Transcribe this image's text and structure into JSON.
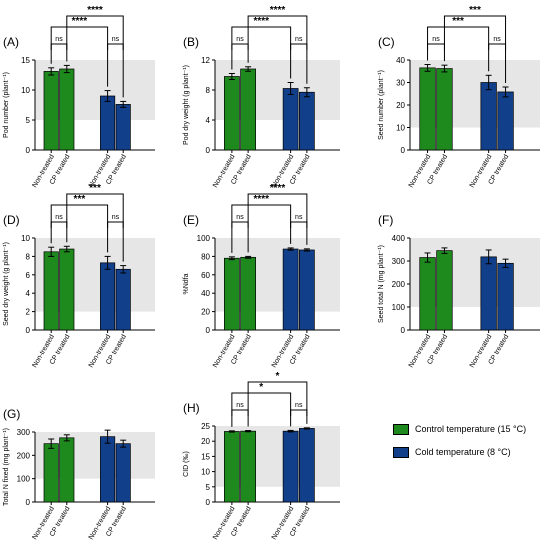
{
  "colors": {
    "control": "#1e8a1e",
    "cold": "#123f8a",
    "background": "#e6e6e6"
  },
  "legend": [
    {
      "label": "Control temperature (15 °C)",
      "color": "#1e8a1e"
    },
    {
      "label": "Cold temperature (8 °C)",
      "color": "#123f8a"
    }
  ],
  "chart_data": [
    {
      "panel": "(A)",
      "type": "bar",
      "ylabel": "Pod number (plant⁻¹)",
      "ylim": [
        0,
        15
      ],
      "yticks": [
        0,
        5,
        10,
        15
      ],
      "shade_above": 5,
      "categories": [
        "Non-treated",
        "CP treated",
        "Non-treated",
        "CP treated"
      ],
      "groups": [
        "control",
        "control",
        "cold",
        "cold"
      ],
      "values": [
        13.1,
        13.5,
        9.0,
        7.6
      ],
      "errors": [
        0.6,
        0.6,
        0.9,
        0.5
      ],
      "brackets": [
        {
          "from": 0,
          "to": 1,
          "label": "ns",
          "level": 0
        },
        {
          "from": 2,
          "to": 3,
          "label": "ns",
          "level": 0
        },
        {
          "from": 0,
          "to": 2,
          "label": "****",
          "level": 1
        },
        {
          "from": 1,
          "to": 3,
          "label": "****",
          "level": 2
        }
      ]
    },
    {
      "panel": "(B)",
      "type": "bar",
      "ylabel": "Pod dry weight (g plant⁻¹)",
      "ylim": [
        0,
        12
      ],
      "yticks": [
        0,
        4,
        8,
        12
      ],
      "shade_above": 4,
      "categories": [
        "Non-treated",
        "CP treated",
        "Non-treated",
        "CP treated"
      ],
      "groups": [
        "control",
        "control",
        "cold",
        "cold"
      ],
      "values": [
        9.8,
        10.8,
        8.2,
        7.7
      ],
      "errors": [
        0.4,
        0.3,
        0.8,
        0.6
      ],
      "brackets": [
        {
          "from": 0,
          "to": 1,
          "label": "ns",
          "level": 0
        },
        {
          "from": 2,
          "to": 3,
          "label": "ns",
          "level": 0
        },
        {
          "from": 0,
          "to": 2,
          "label": "****",
          "level": 1
        },
        {
          "from": 1,
          "to": 3,
          "label": "****",
          "level": 2
        }
      ]
    },
    {
      "panel": "(C)",
      "type": "bar",
      "ylabel": "Seed number (plant⁻¹)",
      "ylim": [
        0,
        40
      ],
      "yticks": [
        0,
        10,
        20,
        30,
        40
      ],
      "shade_above": 10,
      "categories": [
        "Non-treated",
        "CP treated",
        "Non-treated",
        "CP treated"
      ],
      "groups": [
        "control",
        "control",
        "cold",
        "cold"
      ],
      "values": [
        36.5,
        36.2,
        30.0,
        25.8
      ],
      "errors": [
        1.5,
        1.5,
        3.2,
        2.2
      ],
      "brackets": [
        {
          "from": 0,
          "to": 1,
          "label": "ns",
          "level": 0
        },
        {
          "from": 2,
          "to": 3,
          "label": "ns",
          "level": 0
        },
        {
          "from": 0,
          "to": 2,
          "label": "***",
          "level": 1
        },
        {
          "from": 1,
          "to": 3,
          "label": "***",
          "level": 2
        }
      ]
    },
    {
      "panel": "(D)",
      "type": "bar",
      "ylabel": "Seed dry weight (g plant⁻¹)",
      "ylim": [
        0,
        10
      ],
      "yticks": [
        0,
        2,
        4,
        6,
        8,
        10
      ],
      "shade_above": 2,
      "categories": [
        "Non-treated",
        "CP treated",
        "Non-treated",
        "CP treated"
      ],
      "groups": [
        "control",
        "control",
        "cold",
        "cold"
      ],
      "values": [
        8.5,
        8.8,
        7.3,
        6.6
      ],
      "errors": [
        0.5,
        0.3,
        0.7,
        0.4
      ],
      "brackets": [
        {
          "from": 0,
          "to": 1,
          "label": "ns",
          "level": 0
        },
        {
          "from": 2,
          "to": 3,
          "label": "ns",
          "level": 0
        },
        {
          "from": 0,
          "to": 2,
          "label": "***",
          "level": 1
        },
        {
          "from": 1,
          "to": 3,
          "label": "***",
          "level": 2
        }
      ]
    },
    {
      "panel": "(E)",
      "type": "bar",
      "ylabel": "%Ndfa",
      "ylim": [
        0,
        100
      ],
      "yticks": [
        0,
        20,
        40,
        60,
        80,
        100
      ],
      "shade_above": 20,
      "categories": [
        "Non-treated",
        "CP treated",
        "Non-treated",
        "CP treated"
      ],
      "groups": [
        "control",
        "control",
        "cold",
        "cold"
      ],
      "values": [
        78,
        79,
        88,
        87
      ],
      "errors": [
        1.5,
        1.0,
        1.2,
        1.2
      ],
      "brackets": [
        {
          "from": 0,
          "to": 1,
          "label": "ns",
          "level": 0
        },
        {
          "from": 2,
          "to": 3,
          "label": "ns",
          "level": 0
        },
        {
          "from": 0,
          "to": 2,
          "label": "****",
          "level": 1
        },
        {
          "from": 1,
          "to": 3,
          "label": "****",
          "level": 2
        }
      ]
    },
    {
      "panel": "(F)",
      "type": "bar",
      "ylabel": "Seed total N (mg plant⁻¹)",
      "ylim": [
        0,
        400
      ],
      "yticks": [
        0,
        100,
        200,
        300,
        400
      ],
      "shade_above": 100,
      "categories": [
        "Non-treated",
        "CP treated",
        "Non-treated",
        "CP treated"
      ],
      "groups": [
        "control",
        "control",
        "cold",
        "cold"
      ],
      "values": [
        315,
        345,
        318,
        290
      ],
      "errors": [
        20,
        12,
        30,
        18
      ],
      "brackets": []
    },
    {
      "panel": "(G)",
      "type": "bar",
      "ylabel": "Total N fixed (mg plant⁻¹)",
      "ylim": [
        0,
        300
      ],
      "yticks": [
        0,
        100,
        200,
        300
      ],
      "shade_above": 100,
      "categories": [
        "Non-treated",
        "CP treated",
        "Non-treated",
        "CP treated"
      ],
      "groups": [
        "control",
        "control",
        "cold",
        "cold"
      ],
      "values": [
        250,
        275,
        280,
        250
      ],
      "errors": [
        20,
        13,
        28,
        15
      ],
      "brackets": []
    },
    {
      "panel": "(H)",
      "type": "bar",
      "ylabel": "CID (‰)",
      "ylim": [
        0,
        25
      ],
      "yticks": [
        0,
        5,
        10,
        15,
        20,
        25
      ],
      "shade_above": 5,
      "categories": [
        "Non-treated",
        "CP treated",
        "Non-treated",
        "CP treated"
      ],
      "groups": [
        "control",
        "control",
        "cold",
        "cold"
      ],
      "values": [
        23.2,
        23.3,
        23.3,
        24.2
      ],
      "errors": [
        0.2,
        0.2,
        0.25,
        0.2
      ],
      "brackets": [
        {
          "from": 0,
          "to": 1,
          "label": "ns",
          "level": 0
        },
        {
          "from": 2,
          "to": 3,
          "label": "ns",
          "level": 0
        },
        {
          "from": 0,
          "to": 2,
          "label": "*",
          "level": 1
        },
        {
          "from": 1,
          "to": 3,
          "label": "*",
          "level": 2
        }
      ]
    }
  ]
}
